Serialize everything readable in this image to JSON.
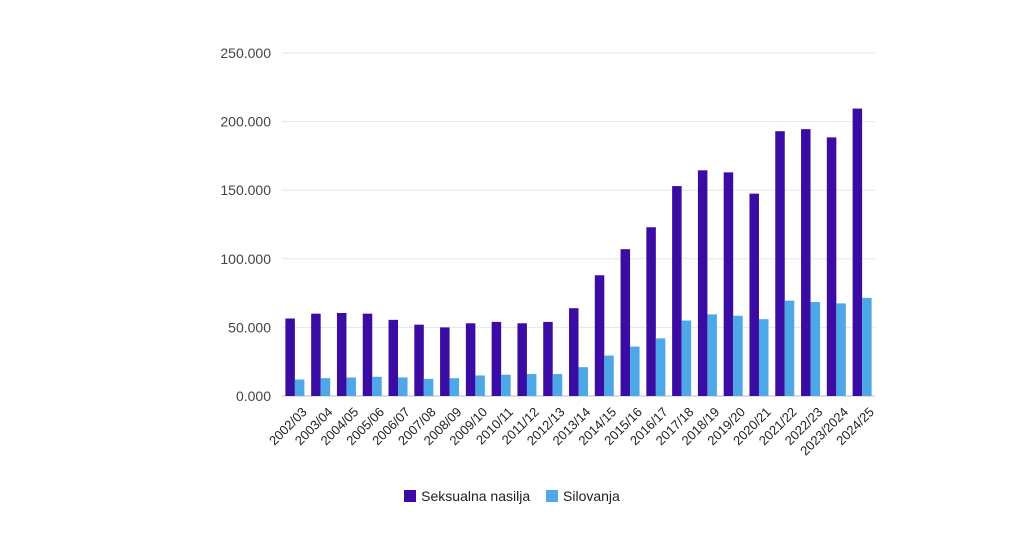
{
  "chart_data": {
    "type": "bar",
    "categories": [
      "2002/03",
      "2003/04",
      "2004/05",
      "2005/06",
      "2006/07",
      "2007/08",
      "2008/09",
      "2009/10",
      "2010/11",
      "2011/12",
      "2012/13",
      "2013/14",
      "2014/15",
      "2015/16",
      "2016/17",
      "2017/18",
      "2018/19",
      "2019/20",
      "2020/21",
      "2021/22",
      "2022/23",
      "2023/2024",
      "2024/25"
    ],
    "series": [
      {
        "name": "Seksualna nasilja",
        "color": "#3a0ca3",
        "values": [
          56500,
          60000,
          60500,
          60000,
          55500,
          52000,
          50000,
          53000,
          54000,
          53000,
          54000,
          64000,
          88000,
          107000,
          123000,
          153000,
          164500,
          163000,
          147500,
          193000,
          194500,
          188500,
          209500
        ]
      },
      {
        "name": "Silovanja",
        "color": "#4ea8e8",
        "values": [
          12000,
          13000,
          13500,
          14000,
          13500,
          12500,
          13000,
          15000,
          15500,
          16000,
          16000,
          21000,
          29500,
          36000,
          42000,
          55000,
          59500,
          58500,
          56000,
          69500,
          68500,
          67500,
          71500
        ]
      }
    ],
    "yticks": [
      "0.000",
      "50.000",
      "100.000",
      "150.000",
      "200.000",
      "250.000"
    ],
    "ylim": [
      0,
      250000
    ],
    "grid": true,
    "legend": "bottom"
  }
}
